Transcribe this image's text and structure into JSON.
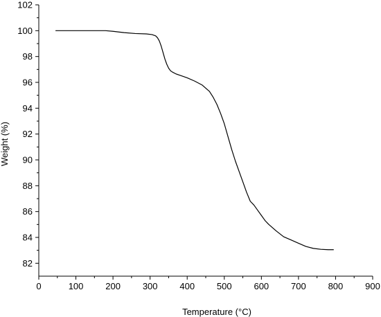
{
  "chart_data": {
    "type": "line",
    "title": "",
    "xlabel": "Temperature (°C)",
    "ylabel": "Weight (%)",
    "xlim": [
      0,
      900
    ],
    "ylim": [
      81,
      102
    ],
    "x_ticks": [
      0,
      100,
      200,
      300,
      400,
      500,
      600,
      700,
      800,
      900
    ],
    "y_ticks": [
      82,
      84,
      86,
      88,
      90,
      92,
      94,
      96,
      98,
      100,
      102
    ],
    "grid": false,
    "legend": "none",
    "line_color": "#000000",
    "series": [
      {
        "x": [
          45,
          80,
          100,
          150,
          180,
          200,
          230,
          260,
          290,
          305,
          315,
          320,
          325,
          330,
          335,
          340,
          345,
          350,
          355,
          360,
          370,
          380,
          390,
          400,
          420,
          440,
          460,
          470,
          480,
          490,
          500,
          510,
          520,
          530,
          540,
          550,
          560,
          570,
          580,
          590,
          600,
          610,
          620,
          640,
          660,
          680,
          700,
          720,
          740,
          760,
          780,
          795
        ],
        "y": [
          100,
          100,
          100,
          100,
          100,
          99.95,
          99.85,
          99.78,
          99.75,
          99.7,
          99.6,
          99.45,
          99.2,
          98.8,
          98.3,
          97.8,
          97.4,
          97.1,
          96.9,
          96.8,
          96.65,
          96.55,
          96.45,
          96.35,
          96.1,
          95.8,
          95.3,
          94.85,
          94.3,
          93.6,
          92.8,
          91.8,
          90.8,
          89.9,
          89.1,
          88.3,
          87.5,
          86.8,
          86.5,
          86.1,
          85.7,
          85.3,
          85.0,
          84.5,
          84.05,
          83.8,
          83.55,
          83.3,
          83.15,
          83.08,
          83.05,
          83.05
        ]
      }
    ]
  }
}
